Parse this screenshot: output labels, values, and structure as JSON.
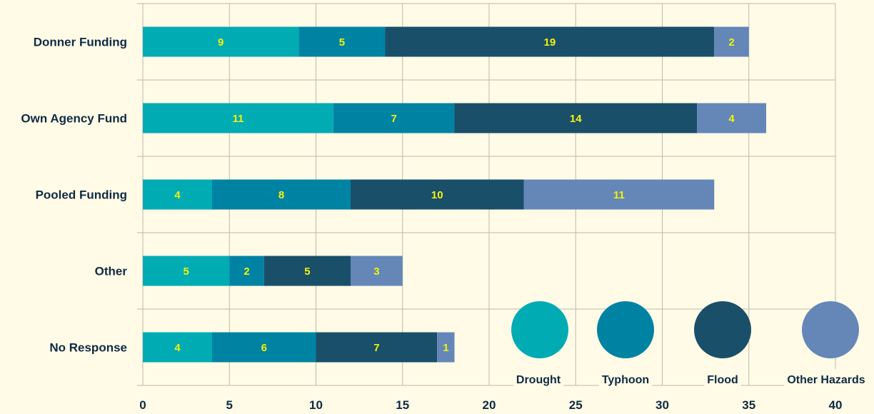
{
  "chart_data": {
    "type": "bar",
    "orientation": "horizontal",
    "stacked": true,
    "categories": [
      "Donner Funding",
      "Own Agency Fund",
      "Pooled Funding",
      "Other",
      "No Response"
    ],
    "series": [
      {
        "name": "Drought",
        "color": "#00abb3",
        "values": [
          9,
          11,
          4,
          5,
          4
        ]
      },
      {
        "name": "Typhoon",
        "color": "#0083a3",
        "values": [
          5,
          7,
          8,
          2,
          6
        ]
      },
      {
        "name": "Flood",
        "color": "#1a4f69",
        "values": [
          19,
          14,
          10,
          5,
          7
        ]
      },
      {
        "name": "Other Hazards",
        "color": "#6487b8",
        "values": [
          2,
          4,
          11,
          3,
          1
        ]
      }
    ],
    "xticks": [
      "0",
      "5",
      "10",
      "15",
      "20",
      "25",
      "30",
      "35",
      "40"
    ],
    "xlim": [
      0,
      40
    ],
    "grid": true,
    "legend_position": "bottom-right",
    "data_labels": true
  }
}
